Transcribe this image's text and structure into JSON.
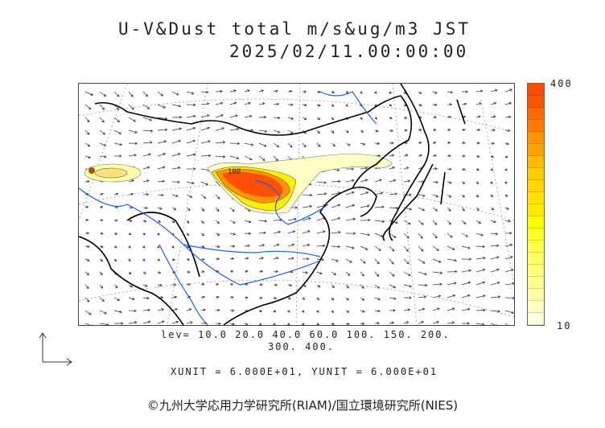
{
  "title": {
    "line1": "U-V&Dust total m/s&ug/m3 JST",
    "line2": "2025/02/11.00:00:00"
  },
  "colorbar": {
    "max_label": "400",
    "min_label": "10",
    "colors": [
      "#ff4a00",
      "#ff5500",
      "#ff6a00",
      "#ff7a00",
      "#ff9500",
      "#ffa000",
      "#ffbb00",
      "#ffcc00",
      "#ffd500",
      "#ffe200",
      "#ffea00",
      "#ffff00",
      "#ffff2a",
      "#ffff45",
      "#ffff60",
      "#ffff78",
      "#ffff90",
      "#ffffaa",
      "#ffffc4",
      "#ffffdc"
    ]
  },
  "levels": {
    "line1": "lev= 10.0 20.0 40.0 60.0 100. 150. 200.",
    "line2": "300. 400."
  },
  "units": "XUNIT = 6.000E+01, YUNIT = 6.000E+01",
  "contour_label": "100",
  "copyright": "©九州大学応用力学研究所(RIAM)/国立環境研究所(NIES)",
  "colors": {
    "coastline": "#000000",
    "rivers": "#1a5cff",
    "dust_high": "#ff4a00"
  }
}
